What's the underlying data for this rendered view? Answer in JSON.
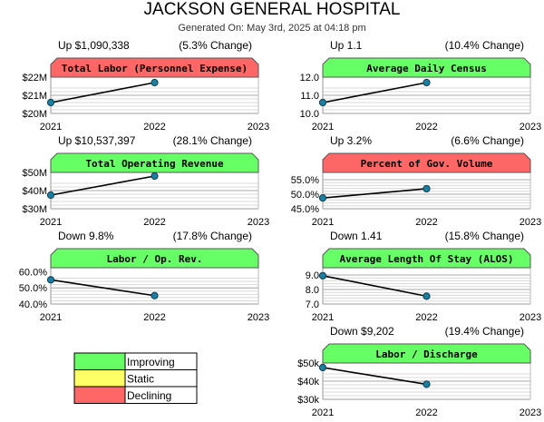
{
  "header": {
    "title": "JACKSON GENERAL HOSPITAL",
    "generated": "Generated On: May 3rd, 2025 at 04:18 pm"
  },
  "colors": {
    "improving": "#66ff66",
    "static": "#ffff66",
    "declining": "#ff6666",
    "line": "#000000",
    "marker": "#1a7fa0",
    "grid": "#aaaaaa"
  },
  "legend": [
    {
      "label": "Improving",
      "status": "improving"
    },
    {
      "label": "Static",
      "status": "static"
    },
    {
      "label": "Declining",
      "status": "declining"
    }
  ],
  "chart_data": [
    {
      "type": "line",
      "title": "Total Labor (Personnel Expense)",
      "status": "declining",
      "change_label": "Up $1,090,338",
      "pct_label": "(5.3% Change)",
      "x": [
        2021,
        2022
      ],
      "y": [
        20600000,
        21700000
      ],
      "xticks": [
        "2021",
        "2022",
        "2023"
      ],
      "xlim": [
        2021,
        2023
      ],
      "ylim": [
        20000000,
        22000000
      ],
      "yticks": [
        20000000,
        21000000,
        22000000
      ],
      "ytick_labels": [
        "$20M",
        "$21M",
        "$22M"
      ]
    },
    {
      "type": "line",
      "title": "Average Daily Census",
      "status": "improving",
      "change_label": "Up 1.1",
      "pct_label": "(10.4% Change)",
      "x": [
        2021,
        2022
      ],
      "y": [
        10.6,
        11.7
      ],
      "xticks": [
        "2021",
        "2022",
        "2023"
      ],
      "xlim": [
        2021,
        2023
      ],
      "ylim": [
        10,
        12
      ],
      "yticks": [
        10,
        11,
        12
      ],
      "ytick_labels": [
        "10.0",
        "11.0",
        "12.0"
      ]
    },
    {
      "type": "line",
      "title": "Total Operating Revenue",
      "status": "improving",
      "change_label": "Up $10,537,397",
      "pct_label": "(28.1% Change)",
      "x": [
        2021,
        2022
      ],
      "y": [
        37500000,
        48000000
      ],
      "xticks": [
        "2021",
        "2022",
        "2023"
      ],
      "xlim": [
        2021,
        2023
      ],
      "ylim": [
        30000000,
        50000000
      ],
      "yticks": [
        30000000,
        40000000,
        50000000
      ],
      "ytick_labels": [
        "$30M",
        "$40M",
        "$50M"
      ]
    },
    {
      "type": "line",
      "title": "Percent of Gov. Volume",
      "status": "declining",
      "change_label": "Up 3.2%",
      "pct_label": "(6.6% Change)",
      "x": [
        2021,
        2022
      ],
      "y": [
        48.7,
        51.9
      ],
      "xticks": [
        "2021",
        "2022",
        "2023"
      ],
      "xlim": [
        2021,
        2023
      ],
      "ylim": [
        45,
        57.5
      ],
      "yticks": [
        45,
        50,
        55
      ],
      "ytick_labels": [
        "45.0%",
        "50.0%",
        "55.0%"
      ]
    },
    {
      "type": "line",
      "title": "Labor / Op. Rev.",
      "status": "improving",
      "change_label": "Down 9.8%",
      "pct_label": "(17.8% Change)",
      "x": [
        2021,
        2022
      ],
      "y": [
        55.0,
        45.2
      ],
      "xticks": [
        "2021",
        "2022",
        "2023"
      ],
      "xlim": [
        2021,
        2023
      ],
      "ylim": [
        40,
        62.5
      ],
      "yticks": [
        40,
        50,
        60
      ],
      "ytick_labels": [
        "40.0%",
        "50.0%",
        "60.0%"
      ]
    },
    {
      "type": "line",
      "title": "Average Length Of Stay (ALOS)",
      "status": "improving",
      "change_label": "Down 1.41",
      "pct_label": "(15.8% Change)",
      "x": [
        2021,
        2022
      ],
      "y": [
        8.95,
        7.54
      ],
      "xticks": [
        "2021",
        "2022",
        "2023"
      ],
      "xlim": [
        2021,
        2023
      ],
      "ylim": [
        7,
        9.5
      ],
      "yticks": [
        7,
        8,
        9
      ],
      "ytick_labels": [
        "7.0",
        "8.0",
        "9.0"
      ]
    },
    {
      "type": "line",
      "title": "Labor / Discharge",
      "status": "improving",
      "change_label": "Down $9,202",
      "pct_label": "(19.4% Change)",
      "x": [
        2021,
        2022
      ],
      "y": [
        47500,
        38300
      ],
      "xticks": [
        "2021",
        "2022",
        "2023"
      ],
      "xlim": [
        2021,
        2023
      ],
      "ylim": [
        30000,
        50000
      ],
      "yticks": [
        30000,
        40000,
        50000
      ],
      "ytick_labels": [
        "$30k",
        "$40k",
        "$50k"
      ]
    }
  ]
}
